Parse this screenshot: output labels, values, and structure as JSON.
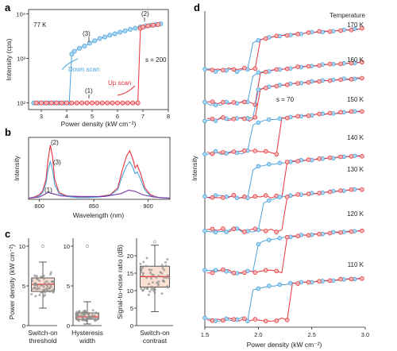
{
  "panels": {
    "a": "a",
    "b": "b",
    "c": "c",
    "d": "d"
  },
  "colors": {
    "blue": "#4da3dd",
    "blue_fill": "#a8d6f2",
    "red": "#e8323a",
    "red_fill": "#f7b7b5",
    "grey": "#8d8d8d",
    "box_fill": "#fbe1d3",
    "box_edge": "#333333"
  },
  "chart_data": [
    {
      "id": "a",
      "type": "scatter",
      "xlabel": "Power density (kW cm⁻²)",
      "ylabel": "Intensity (cps)",
      "temperature_label": "77 K",
      "xlim": [
        2.5,
        8
      ],
      "xticks": [
        "3",
        "4",
        "5",
        "6",
        "7",
        "8"
      ],
      "ylim_log10": [
        1.85,
        4.1
      ],
      "yticks": [
        "10²",
        "10³",
        "10⁴"
      ],
      "annotations": {
        "p1": "(1)",
        "p2": "(2)",
        "p3": "(3)",
        "s": "s = 200",
        "down": "Down scan",
        "up": "Up scan"
      },
      "series": [
        {
          "name": "Down scan",
          "color": "blue",
          "x": [
            2.7,
            2.9,
            3.1,
            3.3,
            3.5,
            3.7,
            3.9,
            4.1,
            4.2,
            4.3,
            4.5,
            4.7,
            4.9,
            5.1,
            5.3,
            5.5,
            5.7,
            5.9,
            6.1,
            6.3,
            6.5,
            6.7,
            6.9,
            7.1,
            7.3,
            7.5,
            7.7
          ],
          "y": [
            100,
            100,
            100,
            100,
            100,
            100,
            100,
            100,
            1250,
            1450,
            1700,
            1900,
            2200,
            2500,
            2800,
            3050,
            3350,
            3600,
            3900,
            4200,
            4500,
            4800,
            5100,
            5400,
            5600,
            5800,
            6000
          ]
        },
        {
          "name": "Up scan",
          "color": "red",
          "x": [
            2.8,
            3.0,
            3.2,
            3.4,
            3.6,
            3.8,
            4.0,
            4.2,
            4.4,
            4.6,
            4.8,
            5.0,
            5.2,
            5.4,
            5.6,
            5.8,
            6.0,
            6.2,
            6.4,
            6.6,
            6.8,
            6.9,
            7.0,
            7.2,
            7.4,
            7.6
          ],
          "y": [
            100,
            100,
            100,
            100,
            100,
            100,
            100,
            100,
            100,
            100,
            100,
            100,
            100,
            100,
            100,
            100,
            100,
            100,
            100,
            100,
            100,
            4800,
            5100,
            5400,
            5600,
            5800
          ]
        }
      ]
    },
    {
      "id": "b",
      "type": "line",
      "xlabel": "Wavelength (nm)",
      "ylabel": "Intensity",
      "xlim": [
        790,
        920
      ],
      "xticks": [
        "800",
        "850",
        "900"
      ],
      "annotations": {
        "p1": "(1)",
        "p2": "(2)",
        "p3": "(3)"
      },
      "series": [
        {
          "name": "(2)",
          "color": "red",
          "x": [
            790,
            795,
            800,
            803,
            806,
            808,
            810,
            812,
            814,
            818,
            825,
            835,
            845,
            855,
            865,
            872,
            876,
            880,
            883,
            886,
            888,
            890,
            893,
            897,
            902,
            910,
            920
          ],
          "y": [
            0.02,
            0.04,
            0.08,
            0.15,
            0.35,
            0.7,
            0.95,
            0.75,
            0.35,
            0.12,
            0.06,
            0.04,
            0.04,
            0.05,
            0.08,
            0.2,
            0.5,
            0.75,
            0.85,
            0.7,
            0.55,
            0.6,
            0.45,
            0.2,
            0.08,
            0.03,
            0.02
          ]
        },
        {
          "name": "(3)",
          "color": "blue",
          "x": [
            790,
            795,
            800,
            803,
            806,
            808,
            810,
            812,
            814,
            818,
            825,
            835,
            845,
            855,
            865,
            872,
            876,
            880,
            883,
            886,
            888,
            890,
            893,
            897,
            902,
            910,
            920
          ],
          "y": [
            0.02,
            0.03,
            0.06,
            0.12,
            0.28,
            0.52,
            0.66,
            0.52,
            0.26,
            0.1,
            0.05,
            0.03,
            0.03,
            0.04,
            0.07,
            0.17,
            0.4,
            0.58,
            0.66,
            0.55,
            0.45,
            0.48,
            0.35,
            0.16,
            0.06,
            0.03,
            0.02
          ]
        },
        {
          "name": "(1)",
          "color": "purple",
          "x": [
            790,
            800,
            808,
            812,
            820,
            840,
            860,
            875,
            882,
            888,
            895,
            905,
            920
          ],
          "y": [
            0.02,
            0.04,
            0.12,
            0.1,
            0.06,
            0.05,
            0.05,
            0.1,
            0.16,
            0.14,
            0.08,
            0.04,
            0.02
          ]
        }
      ]
    },
    {
      "id": "c",
      "type": "box",
      "boxes": [
        {
          "ylabel": "Power density (kW cm⁻²)",
          "xlabel": [
            "Switch-on",
            "threshold"
          ],
          "ylim": [
            0,
            11
          ],
          "yticks": [
            "0",
            "5",
            "10"
          ],
          "q1": 4.3,
          "median": 5.2,
          "q3": 6.0,
          "whisker_low": 2.2,
          "whisker_high": 8.0,
          "outlier_high": 10.0
        },
        {
          "ylabel": "",
          "xlabel": [
            "Hysteresis",
            "width"
          ],
          "ylim": [
            0,
            11
          ],
          "yticks": [
            "0",
            "5",
            "10"
          ],
          "q1": 0.8,
          "median": 1.1,
          "q3": 1.6,
          "whisker_low": 0.2,
          "whisker_high": 3.0,
          "outlier_high": 10.0
        },
        {
          "ylabel": "Signal-to-noise ratio (dB)",
          "xlabel": [
            "Switch-on",
            "contrast"
          ],
          "ylim": [
            0,
            25
          ],
          "yticks": [
            "0",
            "5",
            "10",
            "15",
            "20"
          ],
          "q1": 11.0,
          "median": 14.0,
          "q3": 17.0,
          "whisker_low": 4.0,
          "whisker_high": 23.0,
          "outlier_high": 24.0
        }
      ]
    },
    {
      "id": "d",
      "type": "line",
      "xlabel": "Power density (kW cm⁻²)",
      "ylabel": "Intensity",
      "legend_title": "Temperature",
      "xlim": [
        1.5,
        3.0
      ],
      "xticks": [
        "1.5",
        "2.0",
        "2.5",
        "3.0"
      ],
      "annotation": "s = 70",
      "traces": [
        {
          "label": "170 K",
          "blue_switch": 1.95,
          "red_switch": 2.0
        },
        {
          "label": "160 K",
          "blue_switch": 1.95,
          "red_switch": 2.02
        },
        {
          "label": "150 K",
          "blue_switch": 1.98,
          "red_switch": 2.0
        },
        {
          "label": "140 K",
          "blue_switch": 1.95,
          "red_switch": 2.2
        },
        {
          "label": "130 K",
          "blue_switch": 1.95,
          "red_switch": 2.22
        },
        {
          "label": "120 K",
          "blue_switch": 2.05,
          "red_switch": 2.25
        },
        {
          "label": "110 K",
          "blue_switch": 2.0,
          "red_switch": 2.25
        },
        {
          "label": "",
          "blue_switch": 1.92,
          "red_switch": 2.3
        }
      ]
    }
  ]
}
